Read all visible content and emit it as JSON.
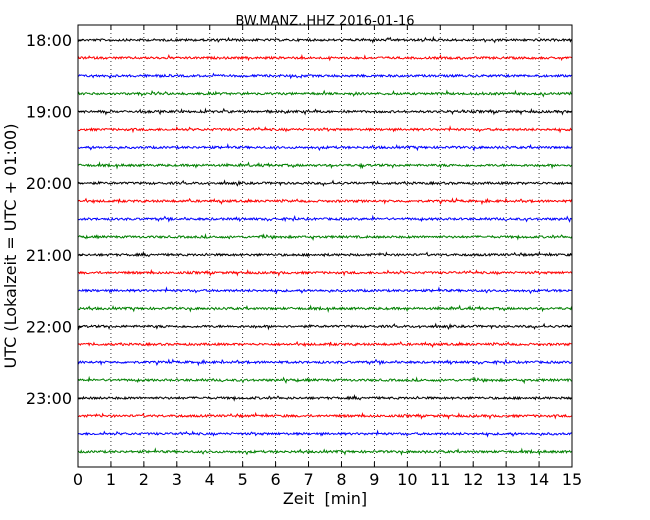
{
  "chart_data": {
    "type": "line",
    "title": "BW.MANZ..HHZ 2016-01-16",
    "xlabel": "Zeit  [min]",
    "ylabel": "UTC (Lokalzeit = UTC + 01:00)",
    "xlim": [
      0,
      15
    ],
    "x_ticks": [
      "0",
      "1",
      "2",
      "3",
      "4",
      "5",
      "6",
      "7",
      "8",
      "9",
      "10",
      "11",
      "12",
      "13",
      "14",
      "15"
    ],
    "y_ticks": [
      "18:00",
      "19:00",
      "20:00",
      "21:00",
      "22:00",
      "23:00"
    ],
    "grid": "vertical dotted",
    "trace_start_time_minutes_of_day": 1080,
    "trace_interval_minutes": 15,
    "trace_count": 24,
    "trace_colors": [
      "#000000",
      "#ff0000",
      "#0000ff",
      "#008000"
    ]
  }
}
